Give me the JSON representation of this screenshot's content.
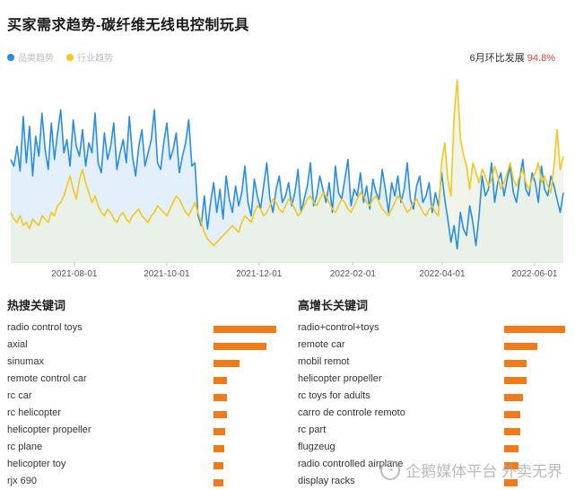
{
  "title": "买家需求趋势-碳纤维无线电控制玩具",
  "legend": {
    "item1": {
      "label": "品类趋势",
      "color": "#2a8ee0"
    },
    "item2": {
      "label": "行业趋势",
      "color": "#f2c81e"
    }
  },
  "mom": {
    "label": "6月环比发展",
    "value": "94.8%"
  },
  "chart_data": {
    "type": "line",
    "x_ticks": [
      "2021-08-01",
      "2021-10-01",
      "2021-12-01",
      "2022-02-01",
      "2022-04-01",
      "2022-06-01"
    ],
    "x_range": [
      "2021-06-20",
      "2022-06-20"
    ],
    "grid": false,
    "series": [
      {
        "name": "品类趋势",
        "color": "#2a8ee0",
        "fill": "#d9ebfb",
        "values": [
          62,
          58,
          70,
          55,
          88,
          60,
          82,
          52,
          76,
          64,
          90,
          68,
          56,
          84,
          62,
          78,
          92,
          66,
          74,
          58,
          86,
          70,
          64,
          80,
          58,
          72,
          66,
          90,
          60,
          54,
          78,
          62,
          70,
          84,
          56,
          66,
          74,
          60,
          88,
          64,
          52,
          70,
          80,
          58,
          66,
          74,
          92,
          60,
          56,
          72,
          84,
          62,
          68,
          78,
          54,
          64,
          72,
          86,
          58,
          60,
          28,
          22,
          40,
          20,
          36,
          48,
          30,
          44,
          26,
          52,
          38,
          30,
          46,
          34,
          42,
          58,
          36,
          28,
          50,
          40,
          32,
          46,
          60,
          38,
          30,
          44,
          52,
          36,
          40,
          48,
          34,
          42,
          56,
          30,
          38,
          46,
          60,
          34,
          40,
          52,
          44,
          36,
          48,
          30,
          58,
          42,
          38,
          50,
          62,
          34,
          44,
          40,
          54,
          36,
          46,
          32,
          50,
          42,
          38,
          56,
          44,
          30,
          48,
          40,
          52,
          36,
          44,
          60,
          38,
          32,
          46,
          52,
          36,
          40,
          48,
          30,
          42,
          34,
          54,
          38,
          26,
          12,
          22,
          8,
          30,
          20,
          16,
          34,
          24,
          10,
          28,
          52,
          40,
          44,
          60,
          36,
          48,
          54,
          40,
          50,
          58,
          42,
          36,
          50,
          62,
          44,
          40,
          54,
          48,
          36,
          58,
          44,
          40,
          52,
          46,
          38,
          30,
          42
        ]
      },
      {
        "name": "行业趋势",
        "color": "#f2c81e",
        "fill": "#ecf1e2",
        "values": [
          30,
          26,
          24,
          28,
          22,
          24,
          20,
          26,
          24,
          22,
          28,
          26,
          24,
          30,
          28,
          34,
          36,
          40,
          46,
          52,
          44,
          38,
          50,
          56,
          48,
          42,
          36,
          40,
          34,
          30,
          28,
          32,
          30,
          26,
          24,
          28,
          30,
          26,
          24,
          28,
          30,
          32,
          28,
          26,
          24,
          28,
          30,
          34,
          32,
          30,
          28,
          32,
          36,
          40,
          38,
          34,
          30,
          28,
          32,
          36,
          30,
          24,
          18,
          14,
          12,
          10,
          12,
          14,
          16,
          18,
          20,
          22,
          20,
          18,
          24,
          28,
          26,
          24,
          30,
          34,
          32,
          28,
          30,
          34,
          38,
          36,
          32,
          30,
          34,
          38,
          36,
          32,
          28,
          30,
          34,
          38,
          40,
          36,
          34,
          38,
          42,
          40,
          36,
          32,
          30,
          34,
          38,
          36,
          32,
          30,
          34,
          38,
          42,
          40,
          36,
          34,
          38,
          40,
          36,
          32,
          30,
          28,
          32,
          36,
          40,
          38,
          34,
          30,
          32,
          36,
          38,
          34,
          30,
          28,
          32,
          34,
          30,
          28,
          60,
          72,
          50,
          40,
          88,
          110,
          75,
          65,
          58,
          44,
          60,
          54,
          48,
          56,
          52,
          46,
          50,
          58,
          52,
          44,
          48,
          54,
          60,
          50,
          46,
          52,
          56,
          48,
          44,
          50,
          54,
          60,
          48,
          52,
          46,
          42,
          58,
          80,
          56,
          64
        ]
      }
    ]
  },
  "hot": {
    "title": "热搜关键词",
    "items": [
      {
        "label": "radio control toys",
        "value": 100
      },
      {
        "label": "axial",
        "value": 84
      },
      {
        "label": "sinumax",
        "value": 42
      },
      {
        "label": "remote control car",
        "value": 22
      },
      {
        "label": "rc car",
        "value": 21
      },
      {
        "label": "rc helicopter",
        "value": 21
      },
      {
        "label": "helicopter propeller",
        "value": 19
      },
      {
        "label": "rc plane",
        "value": 17
      },
      {
        "label": "helicopter toy",
        "value": 16
      },
      {
        "label": "rjx 690",
        "value": 15
      }
    ]
  },
  "growth": {
    "title": "高增长关键词",
    "items": [
      {
        "label": "radio+control+toys",
        "value": 100
      },
      {
        "label": "remote car",
        "value": 54
      },
      {
        "label": "mobil remot",
        "value": 37
      },
      {
        "label": "helicopter propeller",
        "value": 37
      },
      {
        "label": "rc toys for adults",
        "value": 31
      },
      {
        "label": "carro de controle remoto",
        "value": 27
      },
      {
        "label": "rc part",
        "value": 27
      },
      {
        "label": "flugzeug",
        "value": 24
      },
      {
        "label": "radio controlled airplane",
        "value": 24
      },
      {
        "label": "display racks",
        "value": 22
      }
    ]
  },
  "watermark": {
    "text": "企鹅媒体平台 外卖无界"
  }
}
